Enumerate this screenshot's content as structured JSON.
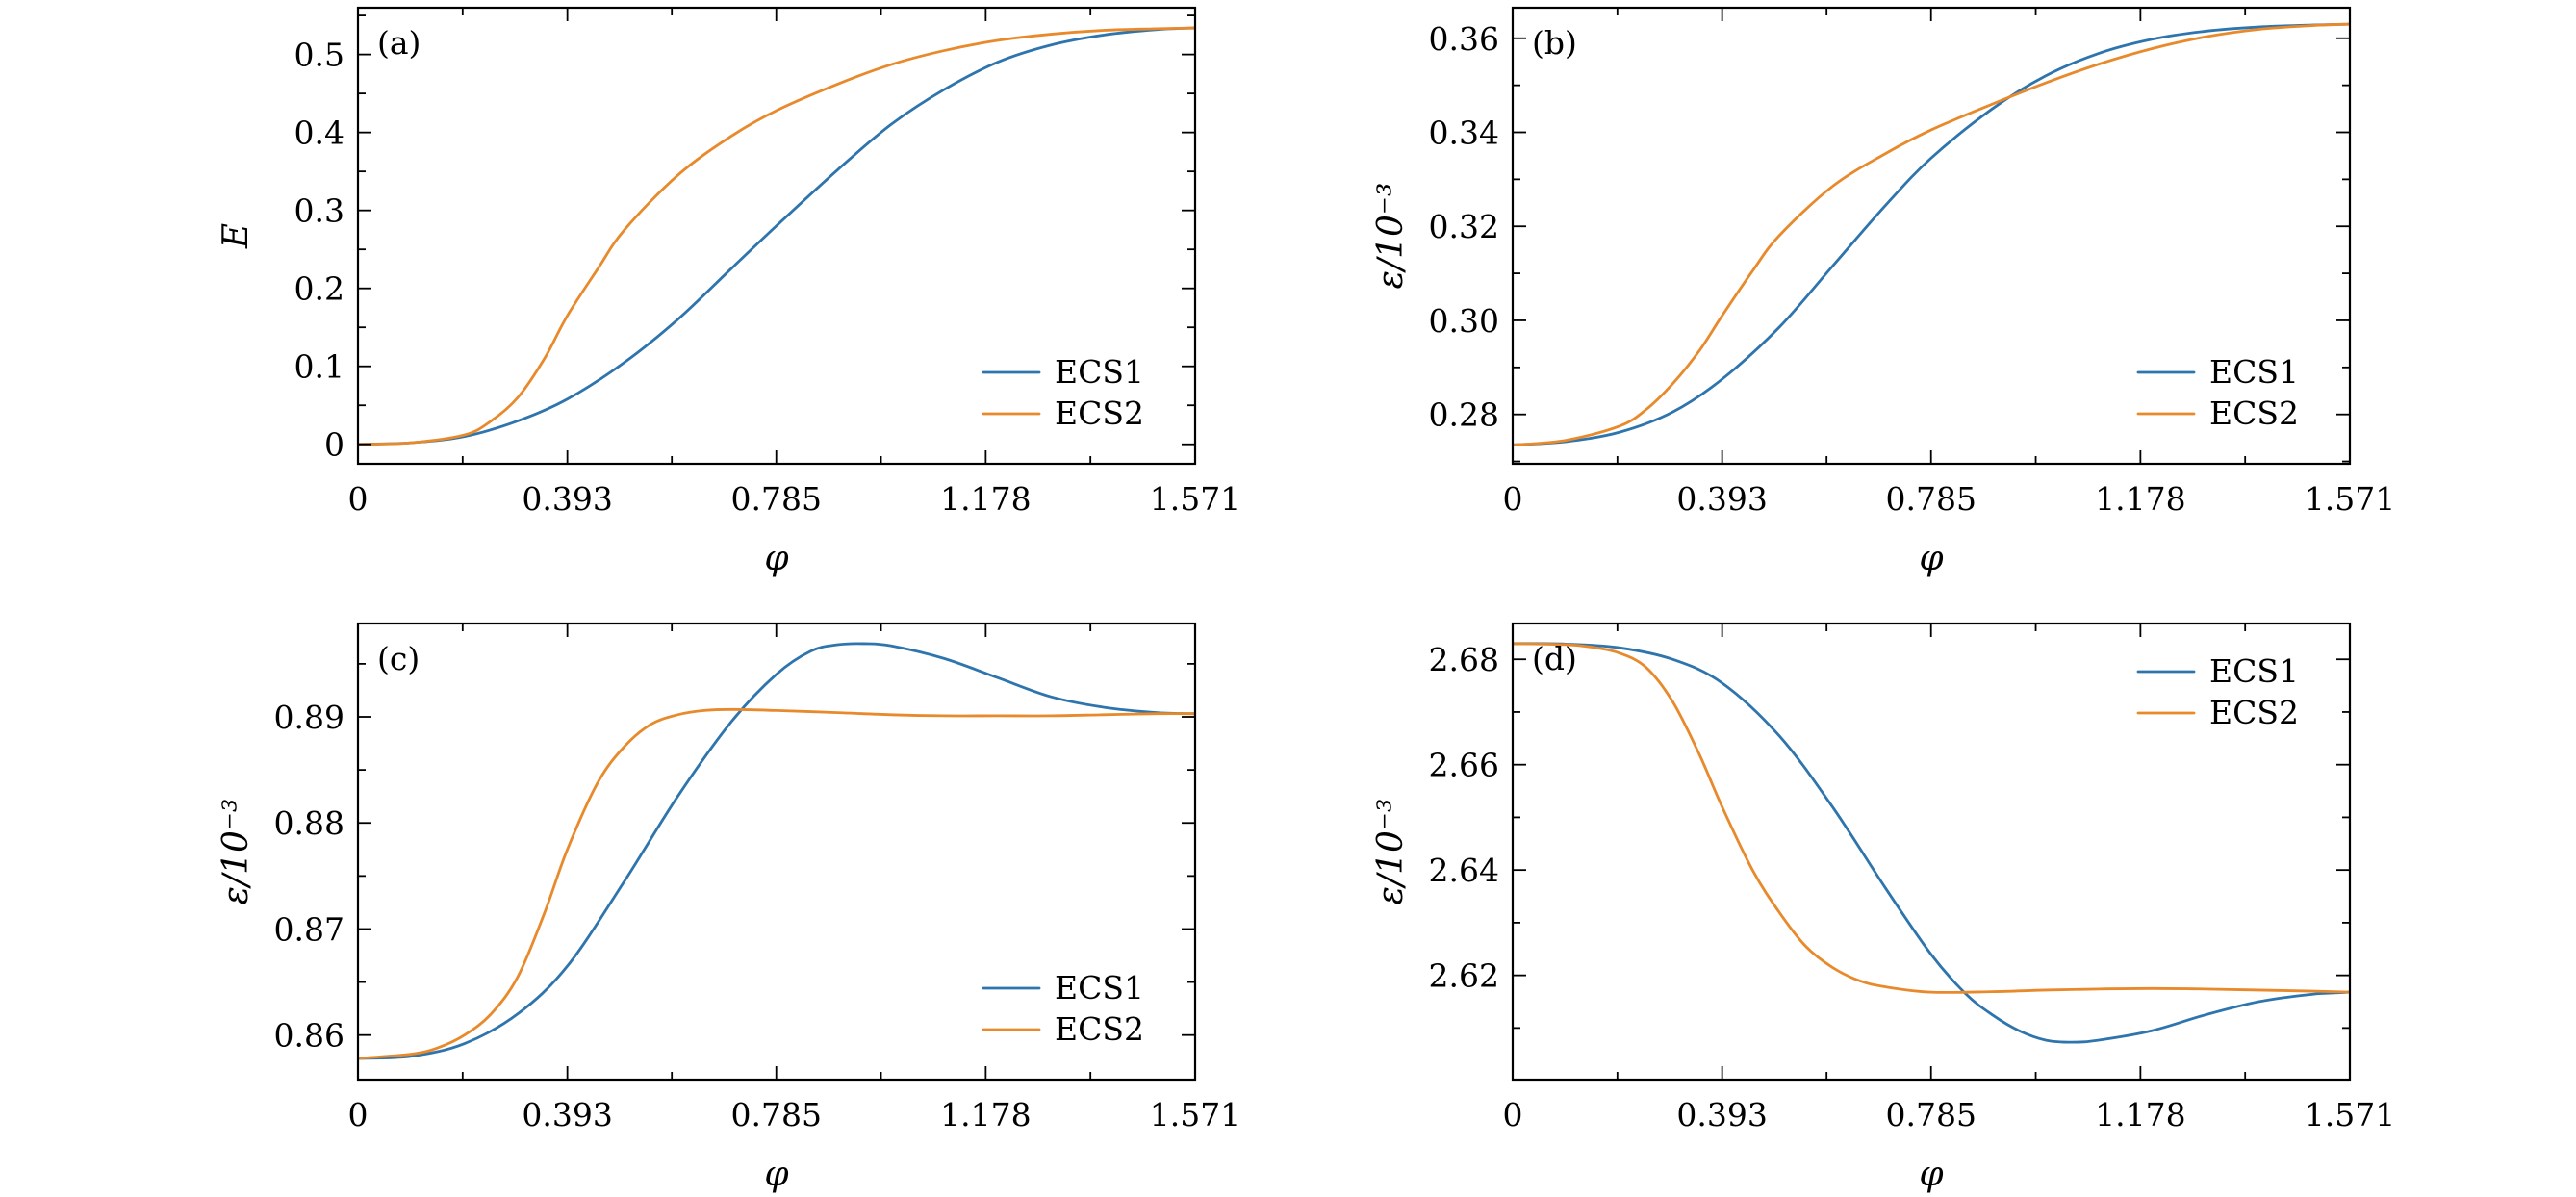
{
  "colors": {
    "ECS1": "#2e74ad",
    "ECS2": "#e88a2b"
  },
  "chart_data": [
    {
      "type": "line",
      "panel_label": "(a)",
      "xlabel": "φ",
      "ylabel": "E",
      "xlim": [
        0,
        1.571
      ],
      "ylim": [
        -0.025,
        0.56
      ],
      "xticks": [
        0,
        0.393,
        0.785,
        1.178,
        1.571
      ],
      "xtick_labels": [
        "0",
        "0.393",
        "0.785",
        "1.178",
        "1.571"
      ],
      "yticks": [
        0,
        0.1,
        0.2,
        0.3,
        0.4,
        0.5
      ],
      "ytick_labels": [
        "0",
        "0.1",
        "0.2",
        "0.3",
        "0.4",
        "0.5"
      ],
      "legend_position": "lower-right",
      "series": [
        {
          "name": "ECS1",
          "x": [
            0,
            0.1,
            0.2,
            0.3,
            0.393,
            0.5,
            0.6,
            0.7,
            0.785,
            0.9,
            1.0,
            1.1,
            1.2,
            1.3,
            1.4,
            1.5,
            1.571
          ],
          "y": [
            0,
            0.002,
            0.01,
            0.03,
            0.058,
            0.105,
            0.16,
            0.225,
            0.28,
            0.352,
            0.41,
            0.455,
            0.49,
            0.512,
            0.525,
            0.532,
            0.534
          ]
        },
        {
          "name": "ECS2",
          "x": [
            0,
            0.1,
            0.2,
            0.25,
            0.3,
            0.35,
            0.393,
            0.45,
            0.5,
            0.6,
            0.7,
            0.785,
            0.9,
            1.0,
            1.1,
            1.2,
            1.3,
            1.4,
            1.5,
            1.571
          ],
          "y": [
            0,
            0.002,
            0.012,
            0.03,
            0.06,
            0.11,
            0.165,
            0.225,
            0.275,
            0.345,
            0.395,
            0.428,
            0.462,
            0.487,
            0.505,
            0.518,
            0.526,
            0.531,
            0.533,
            0.534
          ]
        }
      ]
    },
    {
      "type": "line",
      "panel_label": "(b)",
      "xlabel": "φ",
      "ylabel": "ε/10⁻³",
      "xlim": [
        0,
        1.571
      ],
      "ylim": [
        0.2695,
        0.3665
      ],
      "xticks": [
        0,
        0.393,
        0.785,
        1.178,
        1.571
      ],
      "xtick_labels": [
        "0",
        "0.393",
        "0.785",
        "1.178",
        "1.571"
      ],
      "yticks": [
        0.28,
        0.3,
        0.32,
        0.34,
        0.36
      ],
      "ytick_labels": [
        "0.28",
        "0.30",
        "0.32",
        "0.34",
        "0.36"
      ],
      "legend_position": "lower-right",
      "series": [
        {
          "name": "ECS1",
          "x": [
            0,
            0.1,
            0.2,
            0.3,
            0.393,
            0.5,
            0.6,
            0.7,
            0.785,
            0.9,
            1.0,
            1.1,
            1.2,
            1.3,
            1.4,
            1.5,
            1.571
          ],
          "y": [
            0.2735,
            0.2742,
            0.2762,
            0.2805,
            0.2875,
            0.2985,
            0.3115,
            0.3245,
            0.3345,
            0.345,
            0.352,
            0.3568,
            0.3598,
            0.3615,
            0.3624,
            0.3628,
            0.363
          ]
        },
        {
          "name": "ECS2",
          "x": [
            0,
            0.1,
            0.2,
            0.25,
            0.3,
            0.35,
            0.393,
            0.45,
            0.5,
            0.6,
            0.7,
            0.785,
            0.9,
            1.0,
            1.1,
            1.2,
            1.3,
            1.4,
            1.5,
            1.571
          ],
          "y": [
            0.2735,
            0.2745,
            0.2775,
            0.281,
            0.2865,
            0.2935,
            0.301,
            0.3105,
            0.318,
            0.3285,
            0.3355,
            0.3405,
            0.346,
            0.3505,
            0.3545,
            0.3578,
            0.3603,
            0.3619,
            0.3627,
            0.363
          ]
        }
      ]
    },
    {
      "type": "line",
      "panel_label": "(c)",
      "xlabel": "φ",
      "ylabel": "ε/10⁻³",
      "xlim": [
        0,
        1.571
      ],
      "ylim": [
        0.8558,
        0.8988
      ],
      "xticks": [
        0,
        0.393,
        0.785,
        1.178,
        1.571
      ],
      "xtick_labels": [
        "0",
        "0.393",
        "0.785",
        "1.178",
        "1.571"
      ],
      "yticks": [
        0.86,
        0.87,
        0.88,
        0.89
      ],
      "ytick_labels": [
        "0.86",
        "0.87",
        "0.88",
        "0.89"
      ],
      "legend_position": "lower-right",
      "series": [
        {
          "name": "ECS1",
          "x": [
            0,
            0.1,
            0.2,
            0.3,
            0.393,
            0.5,
            0.6,
            0.7,
            0.785,
            0.85,
            0.9,
            0.95,
            1.0,
            1.1,
            1.2,
            1.3,
            1.4,
            1.5,
            1.571
          ],
          "y": [
            0.8578,
            0.858,
            0.8592,
            0.862,
            0.8665,
            0.8745,
            0.8825,
            0.8895,
            0.894,
            0.8962,
            0.8968,
            0.8969,
            0.8967,
            0.8955,
            0.8937,
            0.8919,
            0.8909,
            0.8904,
            0.8903
          ]
        },
        {
          "name": "ECS2",
          "x": [
            0,
            0.1,
            0.15,
            0.2,
            0.25,
            0.3,
            0.35,
            0.393,
            0.45,
            0.5,
            0.55,
            0.6,
            0.65,
            0.7,
            0.785,
            0.9,
            1.0,
            1.1,
            1.2,
            1.3,
            1.4,
            1.5,
            1.571
          ],
          "y": [
            0.8578,
            0.8582,
            0.8588,
            0.86,
            0.862,
            0.8655,
            0.8715,
            0.8775,
            0.8838,
            0.8872,
            0.8893,
            0.8902,
            0.8906,
            0.8907,
            0.8906,
            0.8904,
            0.8902,
            0.8901,
            0.8901,
            0.8901,
            0.8902,
            0.8903,
            0.8903
          ]
        }
      ]
    },
    {
      "type": "line",
      "panel_label": "(d)",
      "xlabel": "φ",
      "ylabel": "ε/10⁻³",
      "xlim": [
        0,
        1.571
      ],
      "ylim": [
        2.6002,
        2.6868
      ],
      "xticks": [
        0,
        0.393,
        0.785,
        1.178,
        1.571
      ],
      "xtick_labels": [
        "0",
        "0.393",
        "0.785",
        "1.178",
        "1.571"
      ],
      "yticks": [
        2.62,
        2.64,
        2.66,
        2.68
      ],
      "ytick_labels": [
        "2.62",
        "2.64",
        "2.66",
        "2.68"
      ],
      "legend_position": "upper-right",
      "series": [
        {
          "name": "ECS1",
          "x": [
            0,
            0.1,
            0.2,
            0.3,
            0.393,
            0.5,
            0.6,
            0.7,
            0.785,
            0.85,
            0.9,
            0.95,
            1.0,
            1.05,
            1.1,
            1.2,
            1.3,
            1.4,
            1.5,
            1.571
          ],
          "y": [
            2.683,
            2.6829,
            2.6822,
            2.68,
            2.6755,
            2.6655,
            2.652,
            2.6365,
            2.624,
            2.6165,
            2.6125,
            2.6095,
            2.6077,
            2.6073,
            2.6077,
            2.6095,
            2.6125,
            2.615,
            2.6164,
            2.6168
          ]
        },
        {
          "name": "ECS2",
          "x": [
            0,
            0.1,
            0.15,
            0.2,
            0.25,
            0.3,
            0.35,
            0.393,
            0.45,
            0.5,
            0.55,
            0.6,
            0.65,
            0.7,
            0.785,
            0.9,
            1.0,
            1.1,
            1.2,
            1.3,
            1.4,
            1.5,
            1.571
          ],
          "y": [
            2.683,
            2.6828,
            2.6823,
            2.6812,
            2.6785,
            2.672,
            2.662,
            2.652,
            2.64,
            2.632,
            2.6255,
            2.6215,
            2.619,
            2.6178,
            2.6168,
            2.6169,
            2.6172,
            2.6174,
            2.6175,
            2.6174,
            2.6172,
            2.617,
            2.6168
          ]
        }
      ]
    }
  ]
}
